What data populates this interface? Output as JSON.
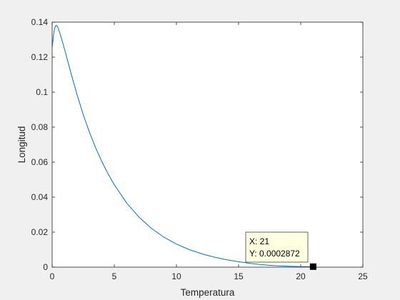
{
  "chart_data": {
    "type": "line",
    "title": "",
    "xlabel": "Temperatura",
    "ylabel": "Longitud",
    "xlim": [
      0,
      25
    ],
    "ylim": [
      0,
      0.14
    ],
    "xticks": [
      "0",
      "5",
      "10",
      "15",
      "20",
      "25"
    ],
    "yticks": [
      "0",
      "0.02",
      "0.04",
      "0.06",
      "0.08",
      "0.1",
      "0.12",
      "0.14"
    ],
    "grid": false,
    "legend": "none",
    "series": [
      {
        "color": "#0072bd",
        "x": [
          0,
          0.1,
          0.2,
          0.3,
          0.4,
          0.5,
          0.6,
          0.8,
          1,
          1.2,
          1.5,
          2,
          2.5,
          3,
          3.5,
          4,
          4.5,
          5,
          6,
          7,
          8,
          9,
          10,
          11,
          12,
          13,
          14,
          15,
          16,
          17,
          18,
          19,
          20,
          21
        ],
        "y": [
          0.125,
          0.132,
          0.1365,
          0.1382,
          0.1378,
          0.1362,
          0.1342,
          0.1295,
          0.1245,
          0.1192,
          0.1112,
          0.0987,
          0.0872,
          0.0771,
          0.0682,
          0.0603,
          0.0533,
          0.0471,
          0.0366,
          0.0285,
          0.0221,
          0.0171,
          0.0132,
          0.0101,
          0.0077,
          0.0058,
          0.0043,
          0.0031,
          0.0021,
          0.0013,
          0.0008,
          0.0005,
          0.0003,
          0.0002872
        ]
      }
    ],
    "datatip": {
      "x": 21,
      "y": 0.0002872,
      "x_text": "X: 21",
      "y_text": "Y: 0.0002872"
    }
  },
  "colors": {
    "figure_background": "#f0f0f0",
    "axes_background": "#ffffff",
    "axes_color": "#262626",
    "line": "#0072bd",
    "datatip_background": "#ffffe1",
    "datatip_border": "#000000"
  }
}
